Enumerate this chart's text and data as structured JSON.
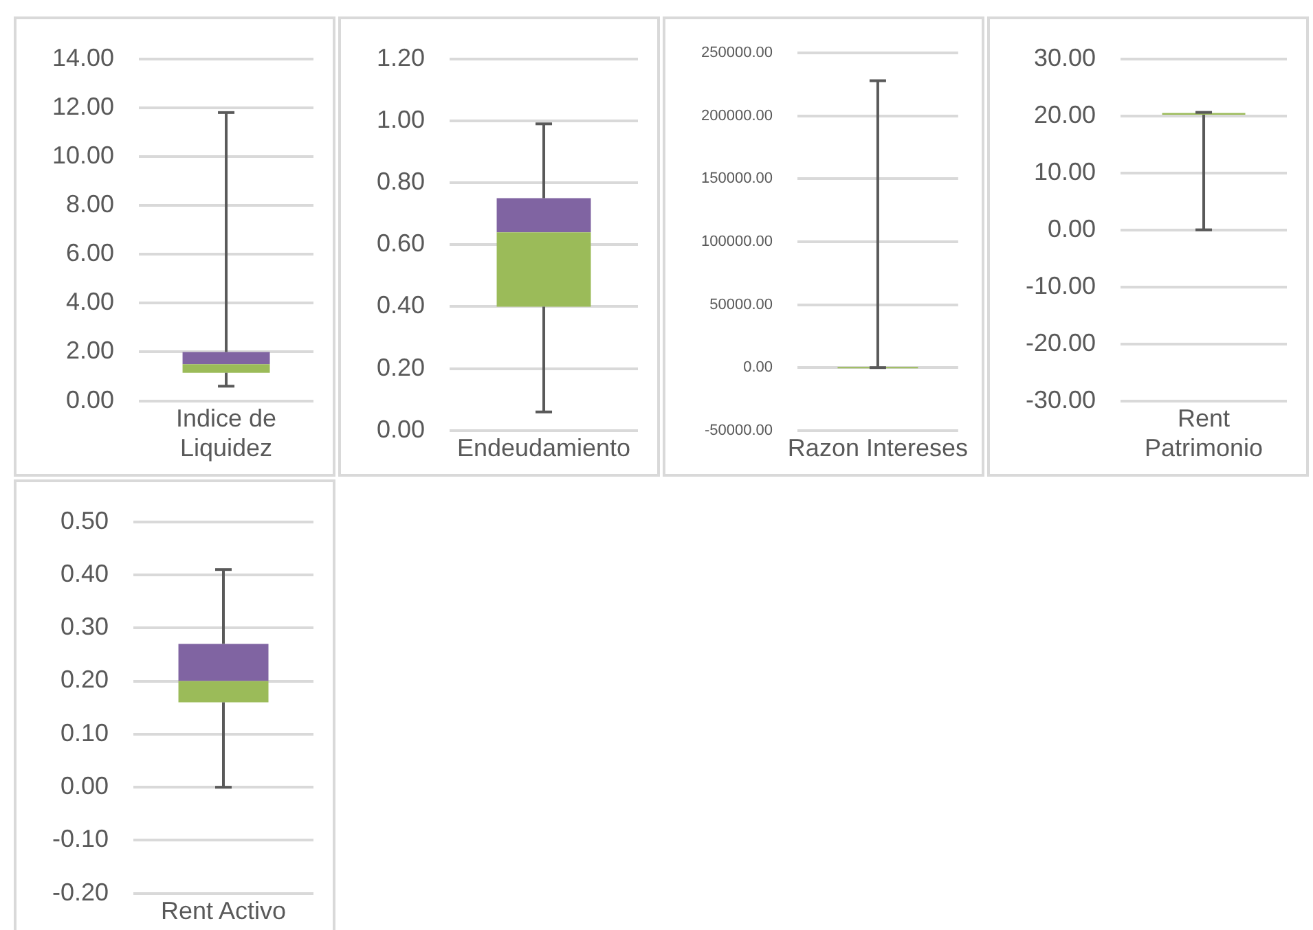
{
  "chart_data": [
    {
      "type": "box",
      "categories": [
        "Indice de Liquidez"
      ],
      "grid": "y",
      "series": [
        {
          "color": "#9bbb59",
          "boxes": [
            {
              "low": 0.6,
              "q1": 1.15,
              "median": 1.5,
              "q3": 2.0,
              "high": 11.8
            }
          ]
        }
      ],
      "ylim": [
        0,
        14
      ],
      "yticks": [
        {
          "value": 0,
          "label": "0.00"
        },
        {
          "value": 2,
          "label": "2.00"
        },
        {
          "value": 4,
          "label": "4.00"
        },
        {
          "value": 6,
          "label": "6.00"
        },
        {
          "value": 8,
          "label": "8.00"
        },
        {
          "value": 10,
          "label": "10.00"
        },
        {
          "value": 12,
          "label": "12.00"
        },
        {
          "value": 14,
          "label": "14.00"
        }
      ]
    },
    {
      "type": "box",
      "categories": [
        "Endeudamiento"
      ],
      "grid": "y",
      "series": [
        {
          "color": "#9bbb59",
          "boxes": [
            {
              "low": 0.06,
              "q1": 0.4,
              "median": 0.64,
              "q3": 0.75,
              "high": 0.99
            }
          ]
        }
      ],
      "ylim": [
        0,
        1.2
      ],
      "yticks": [
        {
          "value": 0,
          "label": "0.00"
        },
        {
          "value": 0.2,
          "label": "0.20"
        },
        {
          "value": 0.4,
          "label": "0.40"
        },
        {
          "value": 0.6,
          "label": "0.60"
        },
        {
          "value": 0.8,
          "label": "0.80"
        },
        {
          "value": 1,
          "label": "1.00"
        },
        {
          "value": 1.2,
          "label": "1.20"
        }
      ]
    },
    {
      "type": "box",
      "categories": [
        "Razon Intereses"
      ],
      "grid": "y",
      "series": [
        {
          "color": "#9bbb59",
          "boxes": [
            {
              "low": 0,
              "q1": 0,
              "median": 0,
              "q3": 0,
              "high": 228000
            }
          ]
        }
      ],
      "ylim": [
        -50000,
        250000
      ],
      "yticks": [
        {
          "value": -50000,
          "label": "-50000.00"
        },
        {
          "value": 0,
          "label": "0.00"
        },
        {
          "value": 50000,
          "label": "50000.00"
        },
        {
          "value": 100000,
          "label": "100000.00"
        },
        {
          "value": 150000,
          "label": "150000.00"
        },
        {
          "value": 200000,
          "label": "200000.00"
        },
        {
          "value": 250000,
          "label": "250000.00"
        }
      ]
    },
    {
      "type": "box",
      "categories": [
        "Rent Patrimonio"
      ],
      "grid": "y",
      "series": [
        {
          "color": "#9bbb59",
          "boxes": [
            {
              "low": 0,
              "q1": 20.2,
              "median": 20.5,
              "q3": 20.5,
              "high": 20.6
            }
          ]
        }
      ],
      "ylim": [
        -30,
        30
      ],
      "yticks": [
        {
          "value": -30,
          "label": "-30.00"
        },
        {
          "value": -20,
          "label": "-20.00"
        },
        {
          "value": -10,
          "label": "-10.00"
        },
        {
          "value": 0,
          "label": "0.00"
        },
        {
          "value": 10,
          "label": "10.00"
        },
        {
          "value": 20,
          "label": "20.00"
        },
        {
          "value": 30,
          "label": "30.00"
        }
      ]
    },
    {
      "type": "box",
      "categories": [
        "Rent Activo"
      ],
      "grid": "y",
      "series": [
        {
          "color": "#9bbb59",
          "boxes": [
            {
              "low": 0,
              "q1": 0.16,
              "median": 0.2,
              "q3": 0.27,
              "high": 0.41
            }
          ]
        }
      ],
      "ylim": [
        -0.2,
        0.5
      ],
      "yticks": [
        {
          "value": -0.2,
          "label": "-0.20"
        },
        {
          "value": -0.1,
          "label": "-0.10"
        },
        {
          "value": 0,
          "label": "0.00"
        },
        {
          "value": 0.1,
          "label": "0.10"
        },
        {
          "value": 0.2,
          "label": "0.20"
        },
        {
          "value": 0.3,
          "label": "0.30"
        },
        {
          "value": 0.4,
          "label": "0.40"
        },
        {
          "value": 0.5,
          "label": "0.50"
        }
      ]
    }
  ]
}
